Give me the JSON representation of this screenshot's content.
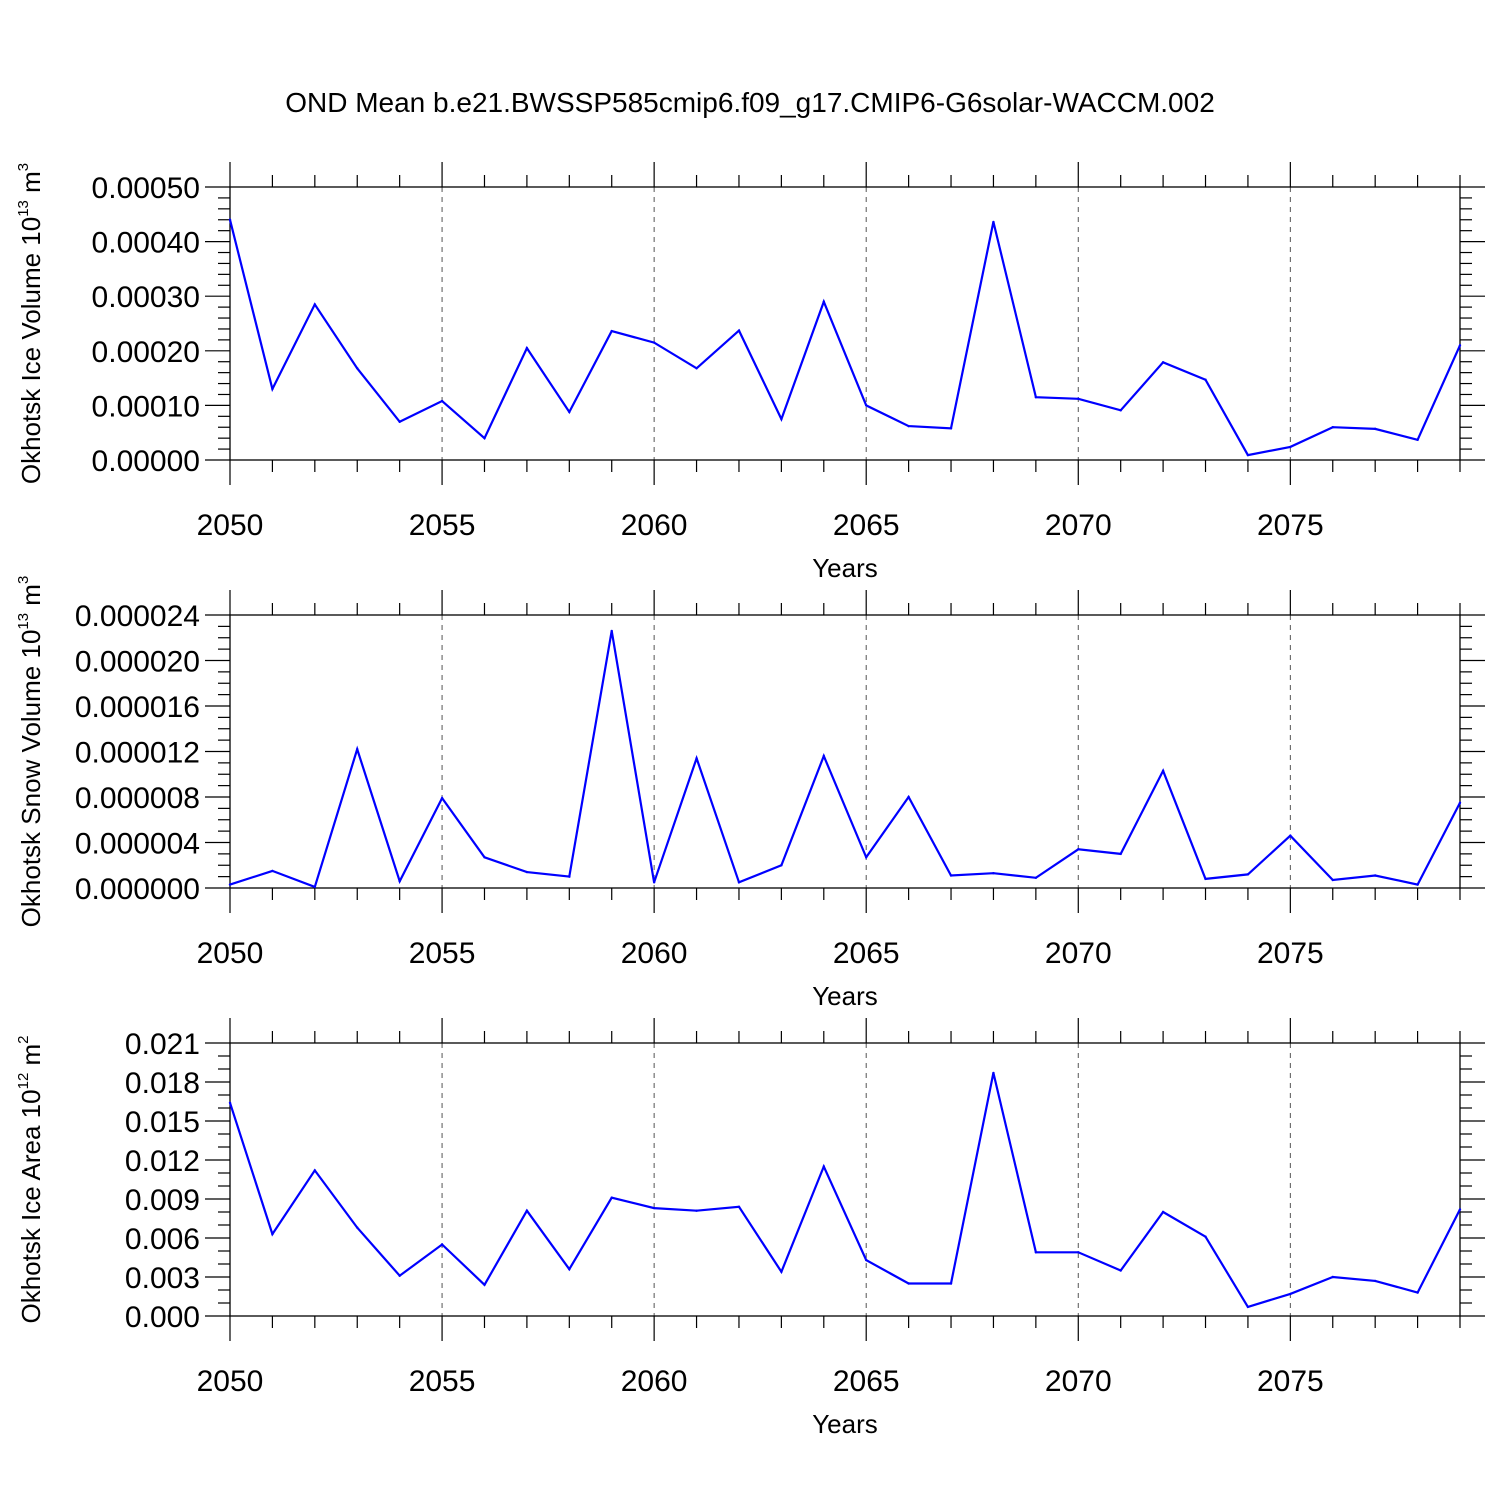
{
  "chart_data": [
    {
      "type": "line",
      "title": "OND Mean b.e21.BWSSP585cmip6.f09_g17.CMIP6-G6solar-WACCM.002",
      "xlabel": "Years",
      "ylabel": {
        "text": "Okhotsk Ice Volume 10",
        "sup": "13",
        "unit": " m",
        "unit_sup": "3"
      },
      "xlim": [
        2050,
        2079
      ],
      "ylim": [
        0.0,
        0.0005
      ],
      "x_major_ticks": [
        2050,
        2055,
        2060,
        2065,
        2070,
        2075
      ],
      "x_tick_labels": [
        "2050",
        "2055",
        "2060",
        "2065",
        "2070",
        "2075"
      ],
      "y_major_ticks": [
        0.0,
        0.0001,
        0.0002,
        0.0003,
        0.0004,
        0.0005
      ],
      "y_tick_labels": [
        "0.00000",
        "0.00010",
        "0.00020",
        "0.00030",
        "0.00040",
        "0.00050"
      ],
      "y_minor_step": 2e-05,
      "gridlines": "x-major-dashed",
      "color": "#0000ff",
      "x": [
        2050,
        2051,
        2052,
        2053,
        2054,
        2055,
        2056,
        2057,
        2058,
        2059,
        2060,
        2061,
        2062,
        2063,
        2064,
        2065,
        2066,
        2067,
        2068,
        2069,
        2070,
        2071,
        2072,
        2073,
        2074,
        2075,
        2076,
        2077,
        2078,
        2079
      ],
      "values": [
        0.00044,
        0.00013,
        0.000285,
        0.000168,
        7e-05,
        0.000108,
        4e-05,
        0.000205,
        8.8e-05,
        0.000236,
        0.000215,
        0.000168,
        0.000237,
        7.5e-05,
        0.00029,
        0.0001,
        6.2e-05,
        5.8e-05,
        0.000436,
        0.000115,
        0.000112,
        9.1e-05,
        0.000179,
        0.000147,
        9e-06,
        2.4e-05,
        6e-05,
        5.7e-05,
        3.7e-05,
        0.00021
      ]
    },
    {
      "type": "line",
      "title": "",
      "xlabel": "Years",
      "ylabel": {
        "text": "Okhotsk Snow Volume 10",
        "sup": "13",
        "unit": " m",
        "unit_sup": "3"
      },
      "xlim": [
        2050,
        2079
      ],
      "ylim": [
        0.0,
        2.4e-05
      ],
      "x_major_ticks": [
        2050,
        2055,
        2060,
        2065,
        2070,
        2075
      ],
      "x_tick_labels": [
        "2050",
        "2055",
        "2060",
        "2065",
        "2070",
        "2075"
      ],
      "y_major_ticks": [
        0.0,
        4e-06,
        8e-06,
        1.2e-05,
        1.6e-05,
        2e-05,
        2.4e-05
      ],
      "y_tick_labels": [
        "0.000000",
        "0.000004",
        "0.000008",
        "0.000012",
        "0.000016",
        "0.000020",
        "0.000024"
      ],
      "y_minor_step": 1e-06,
      "gridlines": "x-major-dashed",
      "color": "#0000ff",
      "x": [
        2050,
        2051,
        2052,
        2053,
        2054,
        2055,
        2056,
        2057,
        2058,
        2059,
        2060,
        2061,
        2062,
        2063,
        2064,
        2065,
        2066,
        2067,
        2068,
        2069,
        2070,
        2071,
        2072,
        2073,
        2074,
        2075,
        2076,
        2077,
        2078,
        2079
      ],
      "values": [
        3e-07,
        1.5e-06,
        1e-07,
        1.22e-05,
        6e-07,
        7.9e-06,
        2.7e-06,
        1.4e-06,
        1e-06,
        2.26e-05,
        5e-07,
        1.14e-05,
        5e-07,
        2e-06,
        1.16e-05,
        2.7e-06,
        8e-06,
        1.1e-06,
        1.3e-06,
        9e-07,
        3.4e-06,
        3e-06,
        1.03e-05,
        8e-07,
        1.2e-06,
        4.6e-06,
        7e-07,
        1.1e-06,
        3e-07,
        7.5e-06
      ]
    },
    {
      "type": "line",
      "title": "",
      "xlabel": "Years",
      "ylabel": {
        "text": "Okhotsk Ice Area 10",
        "sup": "12",
        "unit": " m",
        "unit_sup": "2"
      },
      "xlim": [
        2050,
        2079
      ],
      "ylim": [
        0.0,
        0.021
      ],
      "x_major_ticks": [
        2050,
        2055,
        2060,
        2065,
        2070,
        2075
      ],
      "x_tick_labels": [
        "2050",
        "2055",
        "2060",
        "2065",
        "2070",
        "2075"
      ],
      "y_major_ticks": [
        0.0,
        0.003,
        0.006,
        0.009,
        0.012,
        0.015,
        0.018,
        0.021
      ],
      "y_tick_labels": [
        "0.000",
        "0.003",
        "0.006",
        "0.009",
        "0.012",
        "0.015",
        "0.018",
        "0.021"
      ],
      "y_minor_step": 0.001,
      "gridlines": "x-major-dashed",
      "color": "#0000ff",
      "x": [
        2050,
        2051,
        2052,
        2053,
        2054,
        2055,
        2056,
        2057,
        2058,
        2059,
        2060,
        2061,
        2062,
        2063,
        2064,
        2065,
        2066,
        2067,
        2068,
        2069,
        2070,
        2071,
        2072,
        2073,
        2074,
        2075,
        2076,
        2077,
        2078,
        2079
      ],
      "values": [
        0.0164,
        0.0063,
        0.0112,
        0.0068,
        0.0031,
        0.0055,
        0.0024,
        0.0081,
        0.0036,
        0.0091,
        0.0083,
        0.0081,
        0.0084,
        0.0034,
        0.0115,
        0.0043,
        0.0025,
        0.0025,
        0.0187,
        0.0049,
        0.0049,
        0.0035,
        0.008,
        0.0061,
        0.0007,
        0.0017,
        0.003,
        0.0027,
        0.0018,
        0.0082
      ]
    }
  ]
}
